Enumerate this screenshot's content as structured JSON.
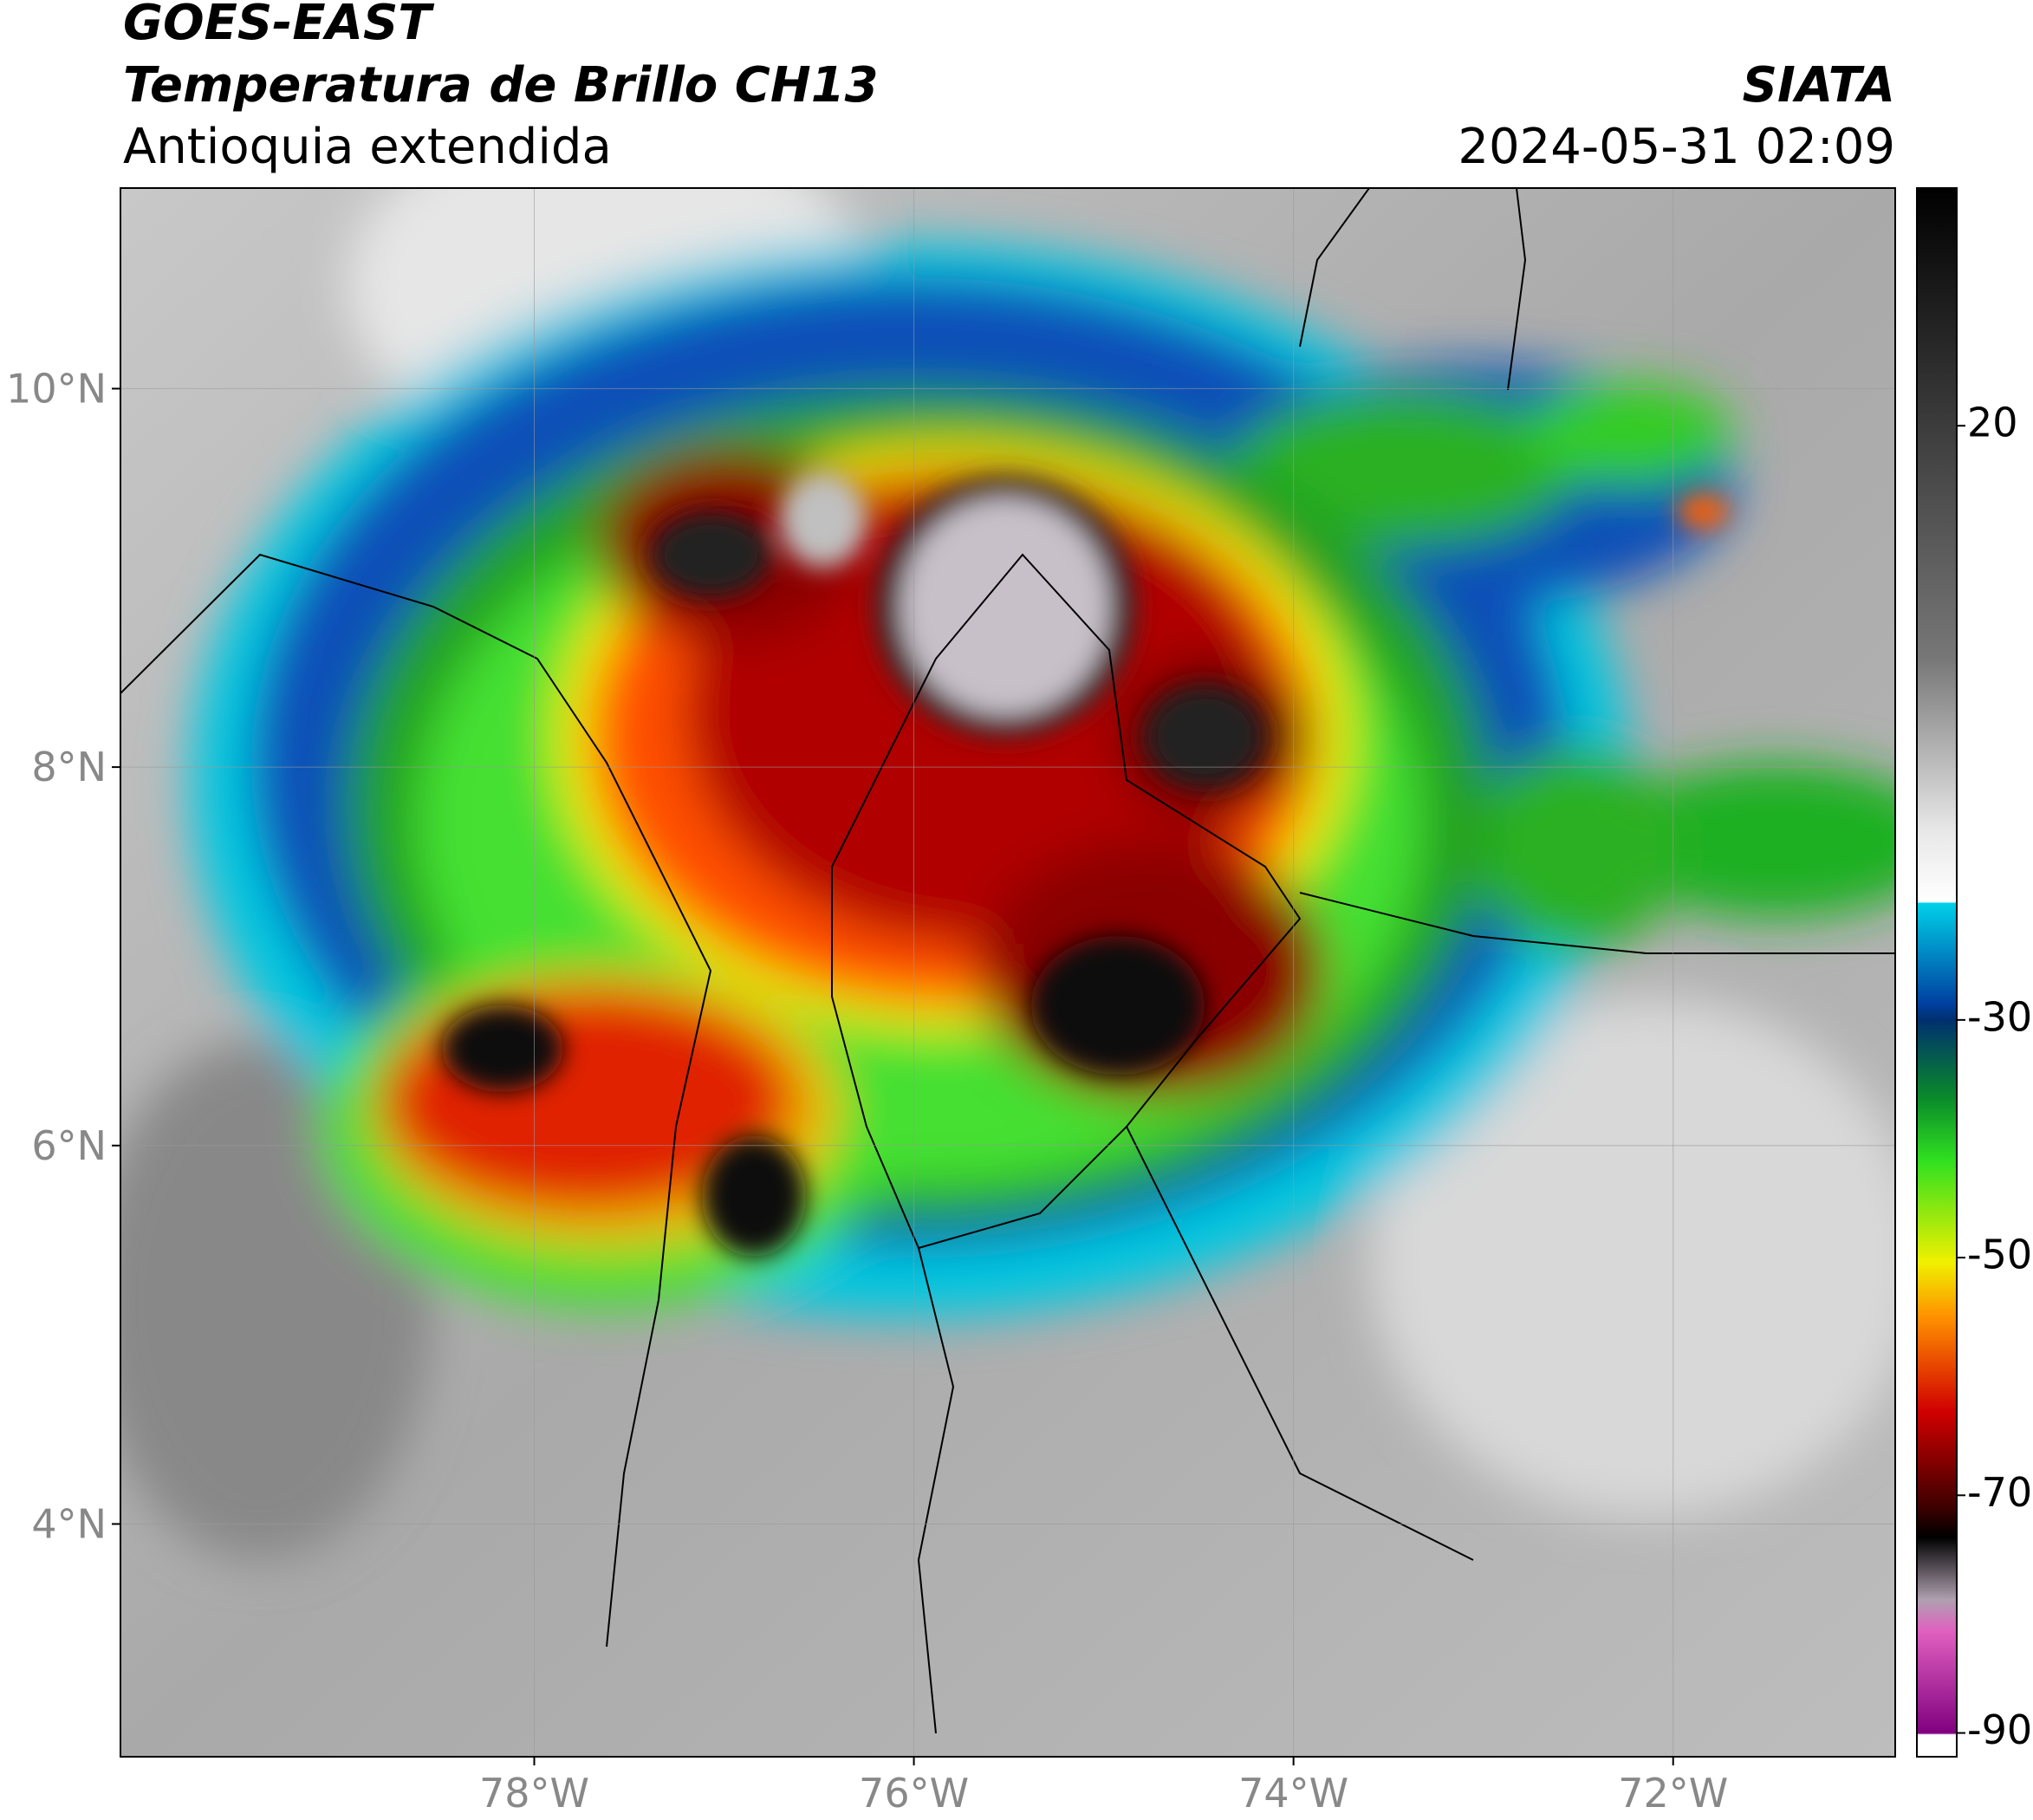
{
  "header": {
    "title": "GOES-EAST",
    "subtitle": "Temperatura de Brillo CH13",
    "region": "Antioquia extendida",
    "source": "SIATA",
    "datetime": "2024-05-31 02:09"
  },
  "map": {
    "xlim": [
      -80.18,
      -70.83
    ],
    "ylim": [
      2.77,
      11.06
    ],
    "xticks": [
      {
        "value": -78,
        "label": "78°W"
      },
      {
        "value": -76,
        "label": "76°W"
      },
      {
        "value": -74,
        "label": "74°W"
      },
      {
        "value": -72,
        "label": "72°W"
      }
    ],
    "yticks": [
      {
        "value": 10,
        "label": "10°N"
      },
      {
        "value": 8,
        "label": "8°N"
      },
      {
        "value": 6,
        "label": "6°N"
      },
      {
        "value": 4,
        "label": "4°N"
      }
    ],
    "grid": true
  },
  "colorbar": {
    "lim": [
      -92,
      40
    ],
    "ticks": [
      20,
      -30,
      -50,
      -70,
      -90
    ]
  }
}
